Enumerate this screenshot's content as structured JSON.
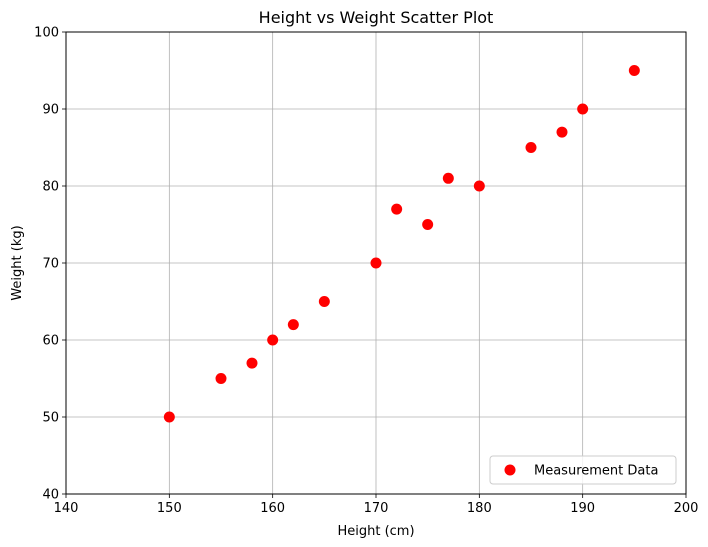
{
  "chart_data": {
    "type": "scatter",
    "title": "Height vs Weight Scatter Plot",
    "xlabel": "Height (cm)",
    "ylabel": "Weight (kg)",
    "xlim": [
      140,
      200
    ],
    "ylim": [
      40,
      100
    ],
    "xticks": [
      140,
      150,
      160,
      170,
      180,
      190,
      200
    ],
    "yticks": [
      40,
      50,
      60,
      70,
      80,
      90,
      100
    ],
    "grid": true,
    "legend_position": "lower-right",
    "series": [
      {
        "name": "Measurement Data",
        "color": "#ff0000",
        "x": [
          150,
          155,
          158,
          160,
          162,
          165,
          170,
          172,
          175,
          177,
          180,
          185,
          188,
          190,
          195
        ],
        "y": [
          50,
          55,
          57,
          60,
          62,
          65,
          70,
          77,
          75,
          81,
          80,
          85,
          87,
          90,
          95
        ]
      }
    ]
  }
}
